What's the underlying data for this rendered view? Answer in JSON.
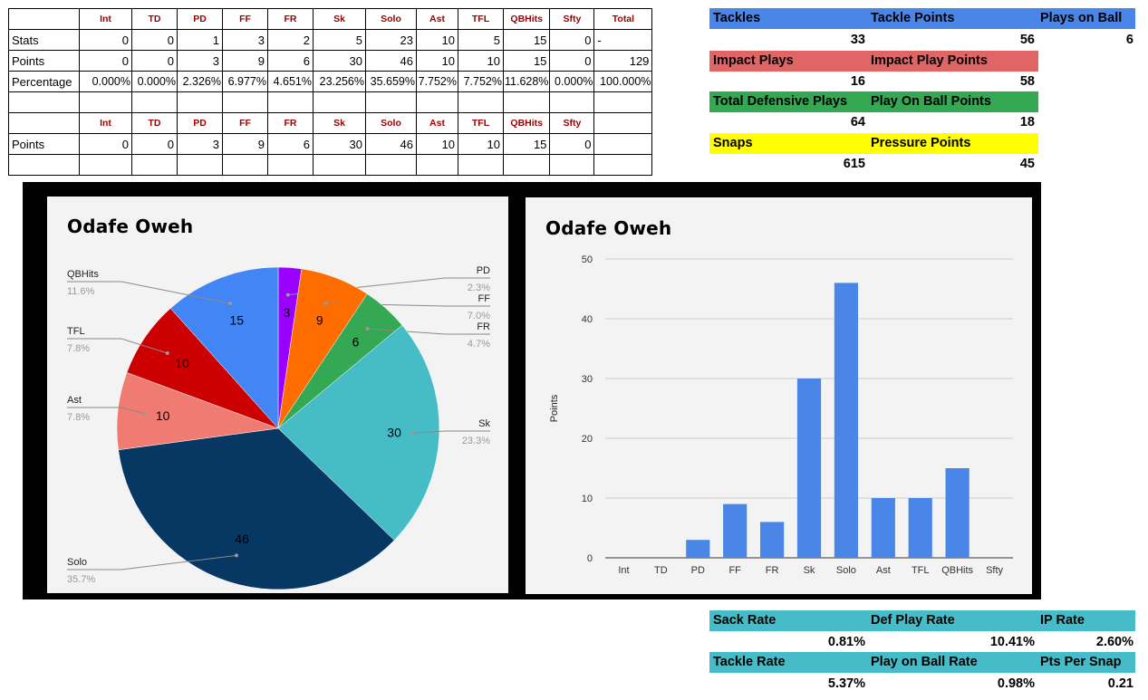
{
  "stats_table": {
    "headers": [
      "Int",
      "TD",
      "PD",
      "FF",
      "FR",
      "Sk",
      "Solo",
      "Ast",
      "TFL",
      "QBHits",
      "Sfty",
      "Total"
    ],
    "rows": [
      {
        "label": "Stats",
        "values": [
          "0",
          "0",
          "1",
          "3",
          "2",
          "5",
          "23",
          "10",
          "5",
          "15",
          "0",
          "-"
        ]
      },
      {
        "label": "Points",
        "values": [
          "0",
          "0",
          "3",
          "9",
          "6",
          "30",
          "46",
          "10",
          "10",
          "15",
          "0",
          "129"
        ]
      },
      {
        "label": "Percentage",
        "values": [
          "0.000%",
          "0.000%",
          "2.326%",
          "6.977%",
          "4.651%",
          "23.256%",
          "35.659%",
          "7.752%",
          "7.752%",
          "11.628%",
          "0.000%",
          "100.000%"
        ]
      }
    ],
    "headers2": [
      "Int",
      "TD",
      "PD",
      "FF",
      "FR",
      "Sk",
      "Solo",
      "Ast",
      "TFL",
      "QBHits",
      "Sfty",
      ""
    ],
    "rows2": [
      {
        "label": "Points",
        "values": [
          "0",
          "0",
          "3",
          "9",
          "6",
          "30",
          "46",
          "10",
          "10",
          "15",
          "0",
          ""
        ]
      }
    ]
  },
  "summary": {
    "tackles": {
      "label": "Tackles",
      "value": "33"
    },
    "tackle_points": {
      "label": "Tackle Points",
      "value": "56"
    },
    "plays_on_ball": {
      "label": "Plays on Ball",
      "value": "6"
    },
    "impact_plays": {
      "label": "Impact Plays",
      "value": "16"
    },
    "impact_play_points": {
      "label": "Impact Play Points",
      "value": "58"
    },
    "total_defensive_plays": {
      "label": "Total Defensive Plays",
      "value": "64"
    },
    "play_on_ball_points": {
      "label": "Play On Ball Points",
      "value": "18"
    },
    "snaps": {
      "label": "Snaps",
      "value": "615"
    },
    "pressure_points": {
      "label": "Pressure Points",
      "value": "45"
    },
    "sack_rate": {
      "label": "Sack Rate",
      "value": "0.81%"
    },
    "def_play_rate": {
      "label": "Def Play Rate",
      "value": "10.41%"
    },
    "ip_rate": {
      "label": "IP Rate",
      "value": "2.60%"
    },
    "tackle_rate": {
      "label": "Tackle Rate",
      "value": "5.37%"
    },
    "play_on_ball_rate": {
      "label": "Play on Ball Rate",
      "value": "0.98%"
    },
    "pts_per_snap": {
      "label": "Pts Per Snap",
      "value": "0.21"
    }
  },
  "colors": {
    "blue_band": "#4a86e8",
    "red_band": "#e06666",
    "green_band": "#34a853",
    "yellow_band": "#ffff00",
    "teal_band": "#45bcc7"
  },
  "chart_data": [
    {
      "type": "pie",
      "title": "Odafe Oweh",
      "slices": [
        {
          "label": "PD",
          "value": 3,
          "percent": "2.3%",
          "color": "#9900ff"
        },
        {
          "label": "FF",
          "value": 9,
          "percent": "7.0%",
          "color": "#ff6d01"
        },
        {
          "label": "FR",
          "value": 6,
          "percent": "4.7%",
          "color": "#34a853"
        },
        {
          "label": "Sk",
          "value": 30,
          "percent": "23.3%",
          "color": "#46bdc6"
        },
        {
          "label": "Solo",
          "value": 46,
          "percent": "35.7%",
          "color": "#073763"
        },
        {
          "label": "Ast",
          "value": 10,
          "percent": "7.8%",
          "color": "#f07b72"
        },
        {
          "label": "TFL",
          "value": 10,
          "percent": "7.8%",
          "color": "#cc0000"
        },
        {
          "label": "QBHits",
          "value": 15,
          "percent": "11.6%",
          "color": "#4285f4"
        }
      ]
    },
    {
      "type": "bar",
      "title": "Odafe Oweh",
      "categories": [
        "Int",
        "TD",
        "PD",
        "FF",
        "FR",
        "Sk",
        "Solo",
        "Ast",
        "TFL",
        "QBHits",
        "Sfty"
      ],
      "values": [
        0,
        0,
        3,
        9,
        6,
        30,
        46,
        10,
        10,
        15,
        0
      ],
      "ylabel": "Points",
      "ylim": [
        0,
        50
      ],
      "yticks": [
        "0",
        "10",
        "20",
        "30",
        "40",
        "50"
      ],
      "grid": true,
      "color": "#4a86e8"
    }
  ]
}
